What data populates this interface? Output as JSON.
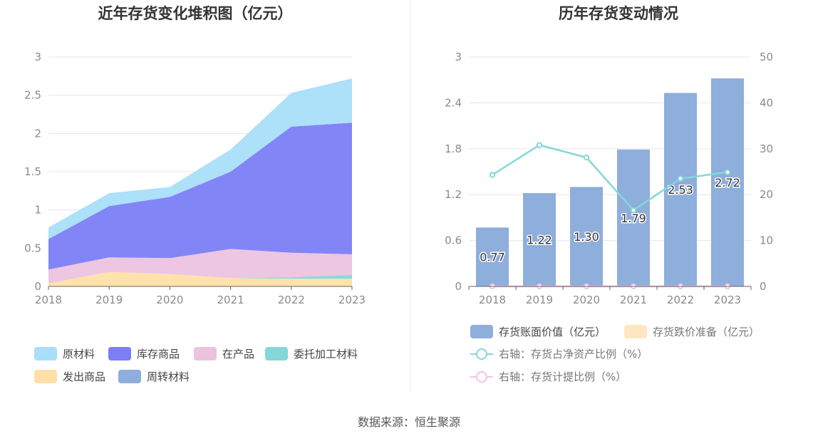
{
  "source_text": "数据来源：恒生聚源",
  "colors": {
    "raw_material": "#a9def9",
    "inventory_goods": "#7b7ef5",
    "wip": "#ecc3df",
    "consigned": "#84d7d9",
    "shipped": "#ffe0a6",
    "turnover": "#8eaedb",
    "bar": "#8eaedb",
    "provision": "#fde6c0",
    "line_ratio": "#84d7d9",
    "line_provision": "#f2c3e3",
    "grid": "#e3e7f2",
    "axis": "#666666"
  },
  "chart_data": [
    {
      "type": "area",
      "stacked": true,
      "title": "近年存货变化堆积图（亿元）",
      "x": [
        "2018",
        "2019",
        "2020",
        "2021",
        "2022",
        "2023"
      ],
      "ylim": [
        0,
        3
      ],
      "yticks": [
        "0",
        "0.5",
        "1",
        "1.5",
        "2",
        "2.5",
        "3"
      ],
      "grid": true,
      "legend_position": "bottom",
      "series": [
        {
          "name": "发出商品",
          "key": "shipped",
          "values": [
            0.04,
            0.19,
            0.16,
            0.11,
            0.1,
            0.1
          ]
        },
        {
          "name": "委托加工材料",
          "key": "consigned",
          "values": [
            0.0,
            0.0,
            0.0,
            0.0,
            0.02,
            0.05
          ]
        },
        {
          "name": "周转材料",
          "key": "turnover",
          "values": [
            0.0,
            0.0,
            0.0,
            0.0,
            0.0,
            0.0
          ]
        },
        {
          "name": "在产品",
          "key": "wip",
          "values": [
            0.18,
            0.19,
            0.21,
            0.38,
            0.32,
            0.27
          ]
        },
        {
          "name": "库存商品",
          "key": "inventory_goods",
          "values": [
            0.4,
            0.67,
            0.8,
            1.01,
            1.65,
            1.72
          ]
        },
        {
          "name": "原材料",
          "key": "raw_material",
          "values": [
            0.15,
            0.17,
            0.13,
            0.29,
            0.44,
            0.58
          ]
        }
      ],
      "legend_order": [
        "原材料",
        "库存商品",
        "在产品",
        "委托加工材料",
        "发出商品",
        "周转材料"
      ]
    },
    {
      "type": "bar",
      "title": "历年存货变动情况",
      "categories": [
        "2018",
        "2019",
        "2020",
        "2021",
        "2022",
        "2023"
      ],
      "ylim": [
        0,
        3
      ],
      "yticks": [
        "0",
        "0.6",
        "1.2",
        "1.8",
        "2.4",
        "3"
      ],
      "y2lim": [
        0,
        50
      ],
      "y2ticks": [
        "0",
        "10",
        "20",
        "30",
        "40",
        "50"
      ],
      "grid": true,
      "legend_position": "bottom",
      "series": [
        {
          "name": "存货账面价值（亿元）",
          "type": "bar",
          "axis": "left",
          "values": [
            0.77,
            1.22,
            1.3,
            1.79,
            2.53,
            2.72
          ],
          "labels": [
            "0.77",
            "1.22",
            "1.30",
            "1.79",
            "2.53",
            "2.72"
          ]
        },
        {
          "name": "存货跌价准备（亿元）",
          "type": "bar",
          "axis": "left",
          "values": [
            0,
            0,
            0,
            0,
            0,
            0
          ]
        },
        {
          "name": "右轴：存货占净资产比例（%）",
          "type": "line",
          "axis": "right",
          "values": [
            24.3,
            30.8,
            28.1,
            16.6,
            23.5,
            24.9
          ]
        },
        {
          "name": "右轴：存货计提比例（%）",
          "type": "line",
          "axis": "right",
          "values": [
            0,
            0,
            0,
            0,
            0,
            0
          ]
        }
      ]
    }
  ]
}
